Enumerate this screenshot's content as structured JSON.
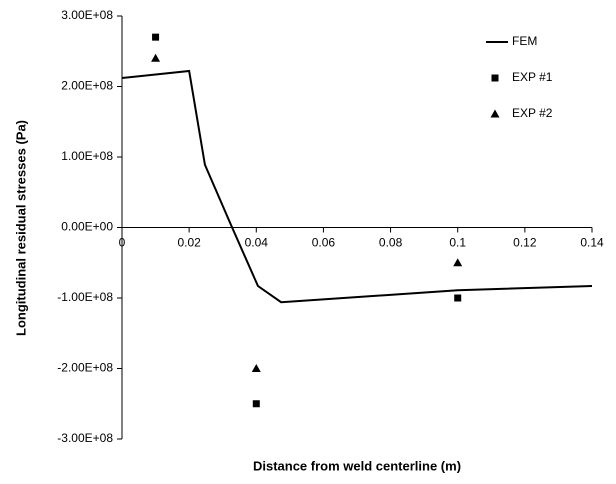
{
  "chart_data": {
    "type": "line",
    "xlabel": "Distance from weld centerline (m)",
    "ylabel": "Longitudinal residual stresses (Pa)",
    "xlim": [
      0,
      0.14
    ],
    "xticks": [
      0,
      0.02,
      0.04,
      0.06,
      0.08,
      0.1,
      0.12,
      0.14
    ],
    "ylim": [
      -300000000,
      300000000
    ],
    "yticks": [
      {
        "value": -300000000,
        "label": "-3.00E+08"
      },
      {
        "value": -200000000,
        "label": "-2.00E+08"
      },
      {
        "value": -100000000,
        "label": "-1.00E+08"
      },
      {
        "value": 0,
        "label": "0.00E+00"
      },
      {
        "value": 100000000,
        "label": "1.00E+08"
      },
      {
        "value": 200000000,
        "label": "2.00E+08"
      },
      {
        "value": 300000000,
        "label": "3.00E+08"
      }
    ],
    "legend": "upper right",
    "series": [
      {
        "name": "FEM",
        "color": "#000000",
        "marker": "none",
        "x": [
          0,
          0.02,
          0.0247,
          0.0328,
          0.0405,
          0.0474,
          0.1,
          0.14
        ],
        "values": [
          212000000,
          222000000,
          89000000,
          0,
          -83000000,
          -106000000,
          -89000000,
          -83000000
        ]
      },
      {
        "name": "EXP #1",
        "color": "#000000",
        "marker": "square",
        "x": [
          0.01,
          0.04,
          0.1
        ],
        "values": [
          270000000,
          -250000000,
          -100000000
        ]
      },
      {
        "name": "EXP #2",
        "color": "#000000",
        "marker": "triangle",
        "x": [
          0.01,
          0.04,
          0.1
        ],
        "values": [
          240000000,
          -200000000,
          -50000000
        ]
      }
    ]
  }
}
